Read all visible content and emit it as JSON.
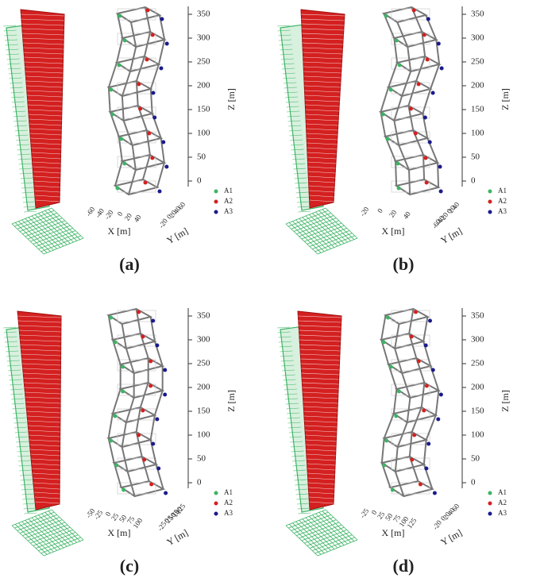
{
  "panels": [
    {
      "label": "(a)",
      "z_axis_label": "Z [m]",
      "x_axis_label": "X [m]",
      "y_axis_label": "Y [m]",
      "z_ticks": [
        350,
        300,
        250,
        200,
        150,
        100,
        50,
        0
      ],
      "x_ticks": [
        -60,
        -40,
        -20,
        0,
        20,
        40
      ],
      "y_ticks": [
        60,
        40,
        20,
        0,
        -20
      ],
      "legend": [
        "A1",
        "A2",
        "A3"
      ]
    },
    {
      "label": "(b)",
      "z_axis_label": "Z [m]",
      "x_axis_label": "X [m]",
      "y_axis_label": "Y [m]",
      "z_ticks": [
        350,
        300,
        250,
        200,
        150,
        100,
        50,
        0
      ],
      "x_ticks": [
        -20,
        0,
        20,
        40
      ],
      "y_ticks": [
        40,
        20,
        0,
        -20,
        -40,
        -60
      ],
      "legend": [
        "A1",
        "A2",
        "A3"
      ]
    },
    {
      "label": "(c)",
      "z_axis_label": "Z [m]",
      "x_axis_label": "X [m]",
      "y_axis_label": "Y [m]",
      "z_ticks": [
        350,
        300,
        250,
        200,
        150,
        100,
        50,
        0
      ],
      "x_ticks": [
        -50,
        -25,
        0,
        25,
        50,
        75,
        100
      ],
      "y_ticks": [
        125,
        100,
        75,
        50,
        25,
        0,
        -25
      ],
      "legend": [
        "A1",
        "A2",
        "A3"
      ]
    },
    {
      "label": "(d)",
      "z_axis_label": "Z [m]",
      "x_axis_label": "X [m]",
      "y_axis_label": "Y [m]",
      "z_ticks": [
        350,
        300,
        250,
        200,
        150,
        100,
        50,
        0
      ],
      "x_ticks": [
        -25,
        0,
        25,
        50,
        75,
        100,
        125
      ],
      "y_ticks": [
        60,
        40,
        20,
        0,
        -20
      ],
      "legend": [
        "A1",
        "A2",
        "A3"
      ]
    }
  ]
}
